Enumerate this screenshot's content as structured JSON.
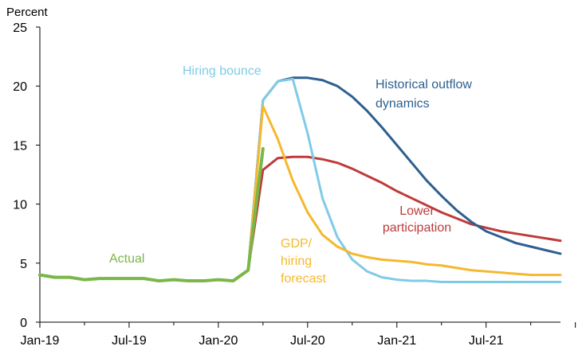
{
  "chart_data": {
    "type": "line",
    "title": "",
    "ylabel": "Percent",
    "xlabel": "",
    "ylim": [
      0,
      25
    ],
    "xlim": [
      "2019-01",
      "2021-12"
    ],
    "y_ticks": [
      "0",
      "5",
      "10",
      "15",
      "20",
      "25"
    ],
    "x_tick_labels": [
      "Jan-19",
      "Jul-19",
      "Jan-20",
      "Jul-20",
      "Jan-21",
      "Jul-21"
    ],
    "grid": false,
    "series": [
      {
        "name": "Actual",
        "color": "#7ab648",
        "x": [
          "2019-01",
          "2019-02",
          "2019-03",
          "2019-04",
          "2019-05",
          "2019-06",
          "2019-07",
          "2019-08",
          "2019-09",
          "2019-10",
          "2019-11",
          "2019-12",
          "2020-01",
          "2020-02",
          "2020-03",
          "2020-04"
        ],
        "values": [
          4.0,
          3.8,
          3.8,
          3.6,
          3.7,
          3.7,
          3.7,
          3.7,
          3.5,
          3.6,
          3.5,
          3.5,
          3.6,
          3.5,
          4.4,
          14.7
        ]
      },
      {
        "name": "Hiring bounce",
        "color": "#7fcbe6",
        "x": [
          "2020-03",
          "2020-04",
          "2020-05",
          "2020-06",
          "2020-07",
          "2020-08",
          "2020-09",
          "2020-10",
          "2020-11",
          "2020-12",
          "2021-01",
          "2021-02",
          "2021-03",
          "2021-04",
          "2021-05",
          "2021-06",
          "2021-07",
          "2021-08",
          "2021-09",
          "2021-10",
          "2021-11",
          "2021-12"
        ],
        "values": [
          4.4,
          18.8,
          20.4,
          20.6,
          16.0,
          10.5,
          7.2,
          5.3,
          4.3,
          3.8,
          3.6,
          3.5,
          3.5,
          3.4,
          3.4,
          3.4,
          3.4,
          3.4,
          3.4,
          3.4,
          3.4,
          3.4
        ]
      },
      {
        "name": "Historical outflow dynamics",
        "color": "#2d5f8f",
        "x": [
          "2020-03",
          "2020-04",
          "2020-05",
          "2020-06",
          "2020-07",
          "2020-08",
          "2020-09",
          "2020-10",
          "2020-11",
          "2020-12",
          "2021-01",
          "2021-02",
          "2021-03",
          "2021-04",
          "2021-05",
          "2021-06",
          "2021-07",
          "2021-08",
          "2021-09",
          "2021-10",
          "2021-11",
          "2021-12"
        ],
        "values": [
          4.4,
          18.8,
          20.4,
          20.7,
          20.7,
          20.5,
          20.0,
          19.1,
          17.9,
          16.5,
          15.0,
          13.5,
          12.0,
          10.7,
          9.5,
          8.5,
          7.7,
          7.2,
          6.7,
          6.4,
          6.1,
          5.8
        ]
      },
      {
        "name": "Lower participation",
        "color": "#be3b3a",
        "x": [
          "2020-03",
          "2020-04",
          "2020-05",
          "2020-06",
          "2020-07",
          "2020-08",
          "2020-09",
          "2020-10",
          "2020-11",
          "2020-12",
          "2021-01",
          "2021-02",
          "2021-03",
          "2021-04",
          "2021-05",
          "2021-06",
          "2021-07",
          "2021-08",
          "2021-09",
          "2021-10",
          "2021-11",
          "2021-12"
        ],
        "values": [
          4.4,
          12.9,
          13.9,
          14.0,
          14.0,
          13.8,
          13.5,
          13.0,
          12.4,
          11.8,
          11.1,
          10.5,
          9.9,
          9.3,
          8.8,
          8.3,
          8.0,
          7.7,
          7.5,
          7.3,
          7.1,
          6.9
        ]
      },
      {
        "name": "GDP/ hiring forecast",
        "color": "#f5b82e",
        "x": [
          "2020-03",
          "2020-04",
          "2020-05",
          "2020-06",
          "2020-07",
          "2020-08",
          "2020-09",
          "2020-10",
          "2020-11",
          "2020-12",
          "2021-01",
          "2021-02",
          "2021-03",
          "2021-04",
          "2021-05",
          "2021-06",
          "2021-07",
          "2021-08",
          "2021-09",
          "2021-10",
          "2021-11",
          "2021-12"
        ],
        "values": [
          4.4,
          18.3,
          15.5,
          12.0,
          9.3,
          7.4,
          6.4,
          5.8,
          5.5,
          5.3,
          5.2,
          5.1,
          4.9,
          4.8,
          4.6,
          4.4,
          4.3,
          4.2,
          4.1,
          4.0,
          4.0,
          4.0
        ]
      }
    ],
    "annotations": [
      {
        "series": "Actual",
        "lines": [
          "Actual"
        ]
      },
      {
        "series": "Hiring bounce",
        "lines": [
          "Hiring bounce"
        ]
      },
      {
        "series": "Historical outflow dynamics",
        "lines": [
          "Historical outflow",
          "dynamics"
        ]
      },
      {
        "series": "Lower participation",
        "lines": [
          "Lower",
          "participation"
        ]
      },
      {
        "series": "GDP/ hiring forecast",
        "lines": [
          "GDP/",
          "hiring",
          "forecast"
        ]
      }
    ]
  }
}
